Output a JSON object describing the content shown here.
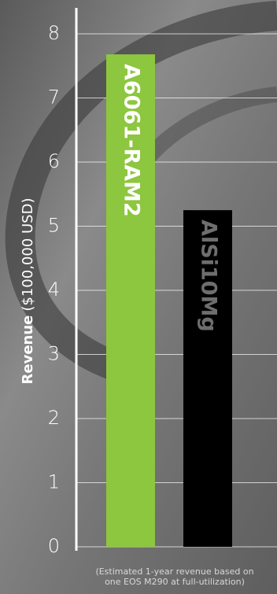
{
  "chart_data": {
    "type": "bar",
    "y_label_bold": "Revenue",
    "y_label": "($100,000 USD)",
    "categories": [
      "A6061-RAM2",
      "AlSi10Mg"
    ],
    "values": [
      7.68,
      5.25
    ],
    "colors": [
      "#8dc63f",
      "#000000"
    ],
    "label_colors": [
      "#ffffff",
      "#6e6e6e"
    ],
    "ylim": [
      0,
      8
    ],
    "yticks": [
      0,
      1,
      2,
      3,
      4,
      5,
      6,
      7,
      8
    ],
    "grid": true,
    "note": [
      "(Estimated 1-year revenue based on",
      "one EOS M290 at full-utilization)"
    ]
  }
}
